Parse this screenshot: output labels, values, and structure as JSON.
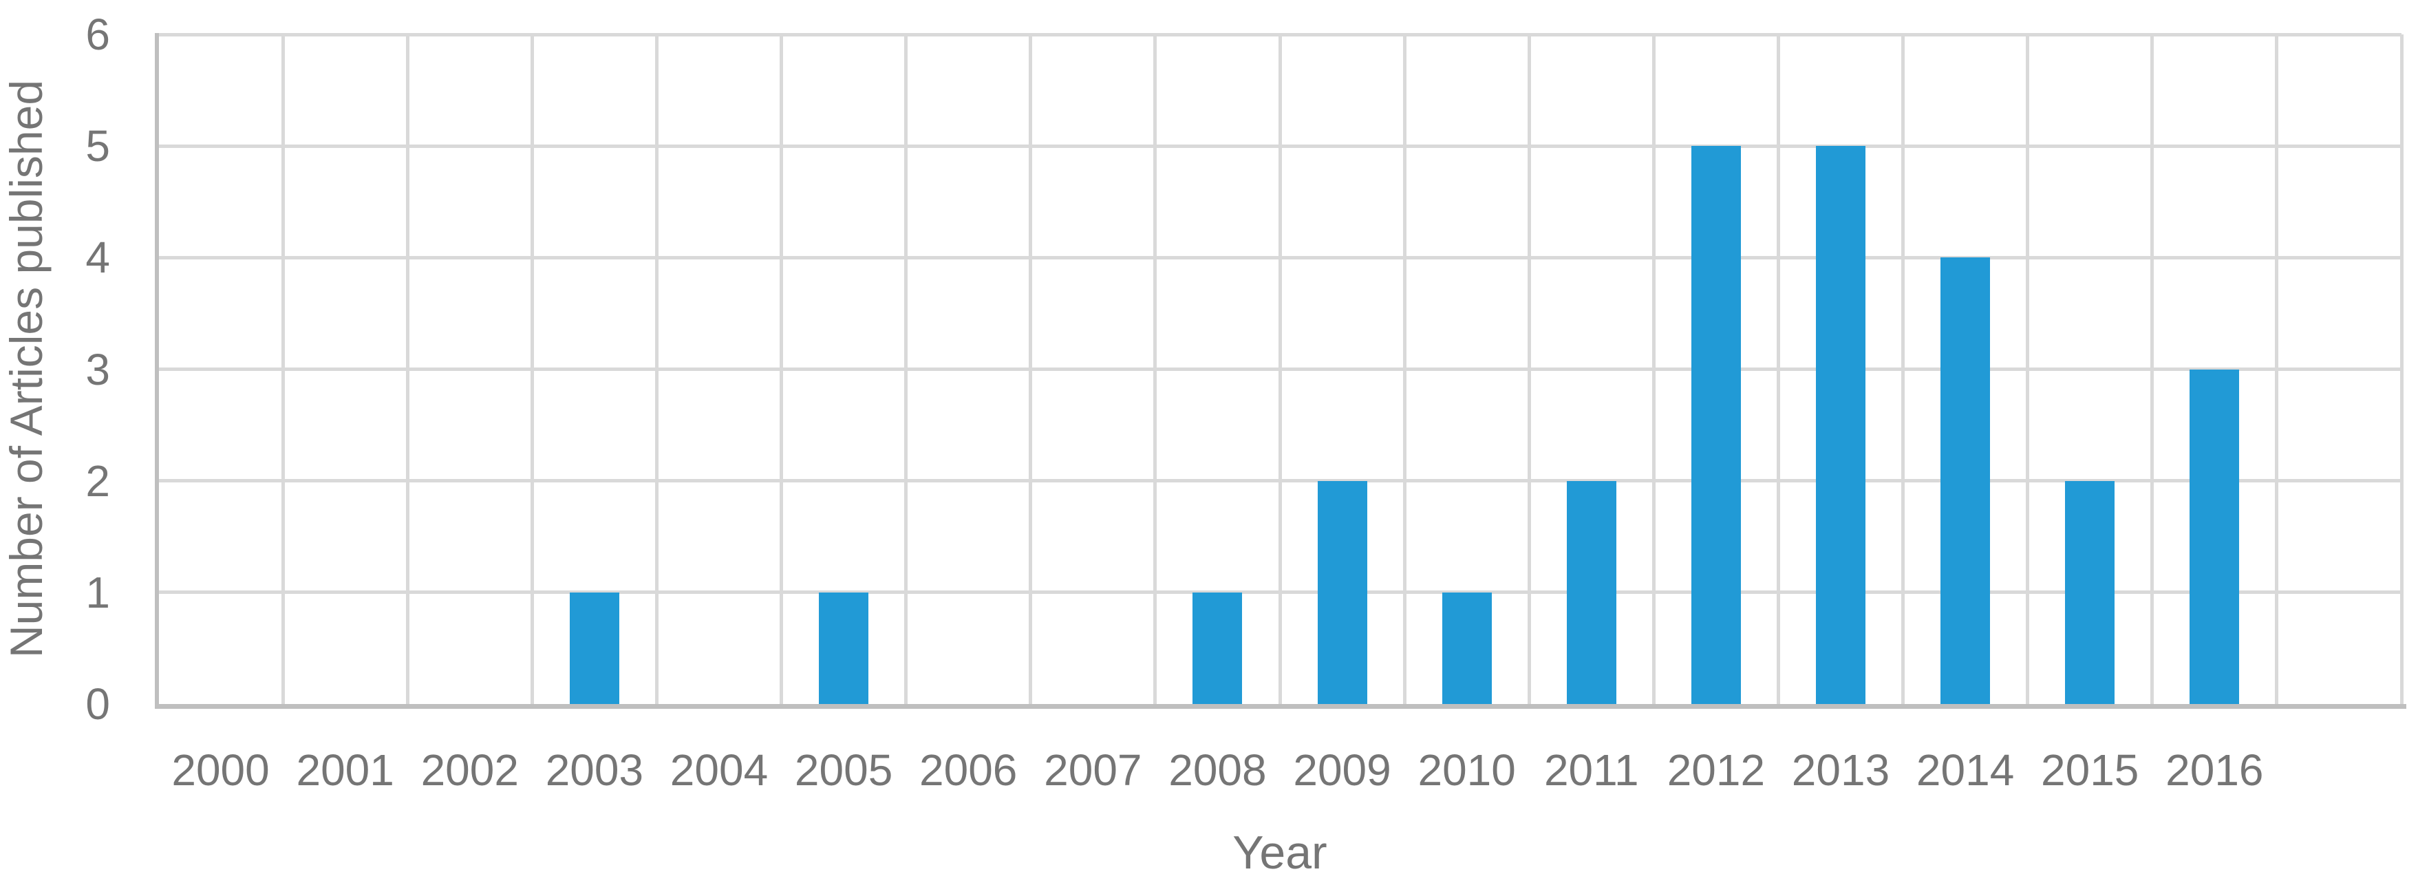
{
  "chart_data": {
    "type": "bar",
    "title": "",
    "categories": [
      "2000",
      "2001",
      "2002",
      "2003",
      "2004",
      "2005",
      "2006",
      "2007",
      "2008",
      "2009",
      "2010",
      "2011",
      "2012",
      "2013",
      "2014",
      "2015",
      "2016"
    ],
    "values": [
      0,
      0,
      0,
      1,
      0,
      1,
      0,
      0,
      1,
      2,
      1,
      2,
      5,
      5,
      4,
      2,
      3
    ],
    "xlabel": "Year",
    "ylabel": "Number of Articles published",
    "ylim": [
      0,
      6
    ],
    "yticks": [
      0,
      1,
      2,
      3,
      4,
      5,
      6
    ],
    "grid": true,
    "legend_position": "none",
    "extra_empty_columns_right": 1,
    "colors": {
      "bar": "#219ad6",
      "gridline": "#d9d9d9",
      "axis_line": "#bfbfbf",
      "tick_text": "#757575",
      "background": "#ffffff"
    }
  }
}
